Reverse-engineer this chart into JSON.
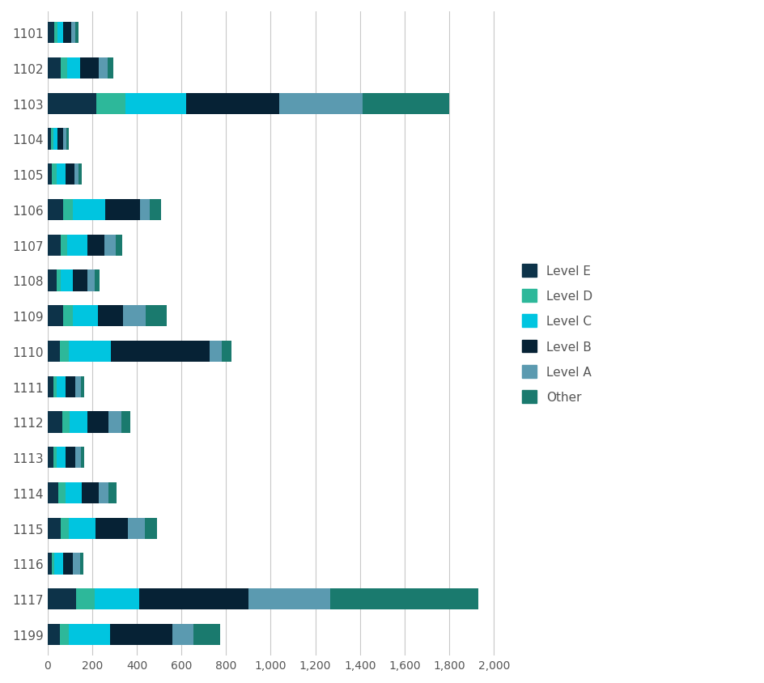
{
  "categories": [
    "1101",
    "1102",
    "1103",
    "1104",
    "1105",
    "1106",
    "1107",
    "1108",
    "1109",
    "1110",
    "1111",
    "1112",
    "1113",
    "1114",
    "1115",
    "1116",
    "1117",
    "1199"
  ],
  "level_E": [
    30,
    60,
    220,
    15,
    20,
    70,
    60,
    40,
    70,
    55,
    25,
    65,
    25,
    50,
    60,
    20,
    130,
    55
  ],
  "level_D": [
    15,
    30,
    130,
    10,
    20,
    45,
    30,
    20,
    45,
    40,
    15,
    35,
    15,
    30,
    35,
    10,
    80,
    40
  ],
  "level_C": [
    25,
    55,
    270,
    20,
    40,
    145,
    90,
    55,
    110,
    190,
    40,
    80,
    40,
    75,
    120,
    40,
    200,
    185
  ],
  "level_B": [
    35,
    85,
    420,
    25,
    40,
    155,
    75,
    65,
    115,
    440,
    45,
    95,
    45,
    75,
    145,
    45,
    490,
    280
  ],
  "level_A": [
    20,
    40,
    370,
    15,
    20,
    45,
    50,
    30,
    100,
    55,
    25,
    55,
    25,
    45,
    75,
    30,
    365,
    95
  ],
  "other": [
    15,
    25,
    390,
    10,
    15,
    50,
    30,
    25,
    95,
    45,
    15,
    40,
    15,
    35,
    55,
    15,
    665,
    120
  ],
  "colors": {
    "level_E": "#0d3349",
    "level_D": "#2db89a",
    "level_C": "#00c5e0",
    "level_B": "#062235",
    "level_A": "#5b9ab0",
    "other": "#1a7a6e"
  },
  "xlim": [
    0,
    2100
  ],
  "xticks": [
    0,
    200,
    400,
    600,
    800,
    1000,
    1200,
    1400,
    1600,
    1800,
    2000
  ],
  "xticklabels": [
    "0",
    "200",
    "400",
    "600",
    "800",
    "1,000",
    "1,200",
    "1,400",
    "1,600",
    "1,800",
    "2,000"
  ],
  "legend_labels": [
    "Level E",
    "Level D",
    "Level C",
    "Level B",
    "Level A",
    "Other"
  ],
  "legend_keys": [
    "level_E",
    "level_D",
    "level_C",
    "level_B",
    "level_A",
    "other"
  ],
  "background_color": "#ffffff",
  "grid_color": "#c8c8c8",
  "label_color": "#555555",
  "bar_height": 0.6
}
